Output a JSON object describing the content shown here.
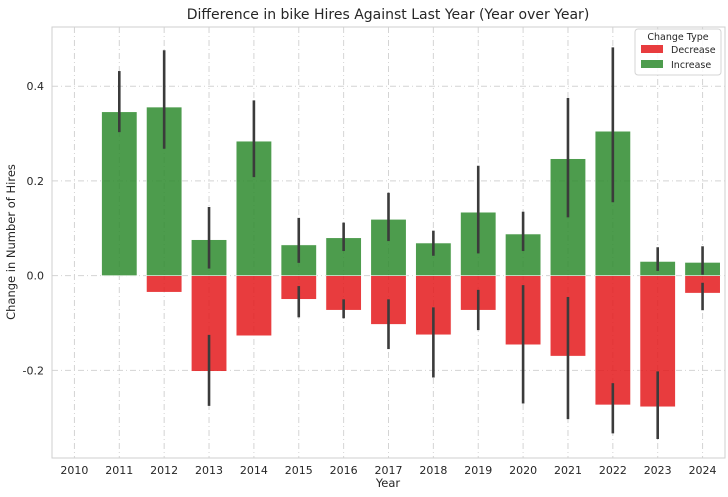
{
  "chart_data": {
    "type": "bar",
    "title": "Difference in bike Hires Against Last Year (Year over Year)",
    "xlabel": "Year",
    "ylabel": "Change in Number of Hires",
    "ylim": [
      -0.385,
      0.525
    ],
    "yticks": [
      -0.2,
      0.0,
      0.2,
      0.4
    ],
    "ytick_labels": [
      "-0.2",
      "0.0",
      "0.2",
      "0.4"
    ],
    "categories": [
      "2010",
      "2011",
      "2012",
      "2013",
      "2014",
      "2015",
      "2016",
      "2017",
      "2018",
      "2019",
      "2020",
      "2021",
      "2022",
      "2023",
      "2024"
    ],
    "grid": true,
    "legend": {
      "title": "Change Type",
      "placement": "top-right"
    },
    "series": [
      {
        "name": "Decrease",
        "color": "#e41a1c",
        "values": [
          null,
          null,
          -0.035,
          -0.202,
          -0.127,
          -0.05,
          -0.073,
          -0.103,
          -0.125,
          -0.073,
          -0.146,
          -0.17,
          -0.273,
          -0.277,
          -0.037
        ],
        "err_low": [
          null,
          null,
          null,
          -0.275,
          null,
          -0.088,
          -0.09,
          -0.155,
          -0.215,
          -0.115,
          -0.27,
          -0.303,
          -0.333,
          -0.345,
          -0.073
        ],
        "err_high": [
          null,
          null,
          null,
          -0.125,
          null,
          -0.022,
          -0.05,
          -0.05,
          -0.067,
          -0.03,
          -0.02,
          -0.045,
          -0.227,
          -0.202,
          -0.015
        ]
      },
      {
        "name": "Increase",
        "color": "#2e8b2e",
        "values": [
          null,
          0.346,
          0.356,
          0.076,
          0.284,
          0.065,
          0.08,
          0.119,
          0.069,
          0.134,
          0.088,
          0.247,
          0.305,
          0.03,
          0.028
        ],
        "err_low": [
          null,
          0.303,
          0.268,
          0.015,
          0.208,
          0.027,
          0.052,
          0.073,
          0.042,
          0.047,
          0.052,
          0.123,
          0.155,
          0.01,
          0.002
        ],
        "err_high": [
          null,
          0.432,
          0.476,
          0.145,
          0.37,
          0.122,
          0.112,
          0.175,
          0.095,
          0.232,
          0.135,
          0.375,
          0.482,
          0.06,
          0.062
        ]
      }
    ]
  }
}
